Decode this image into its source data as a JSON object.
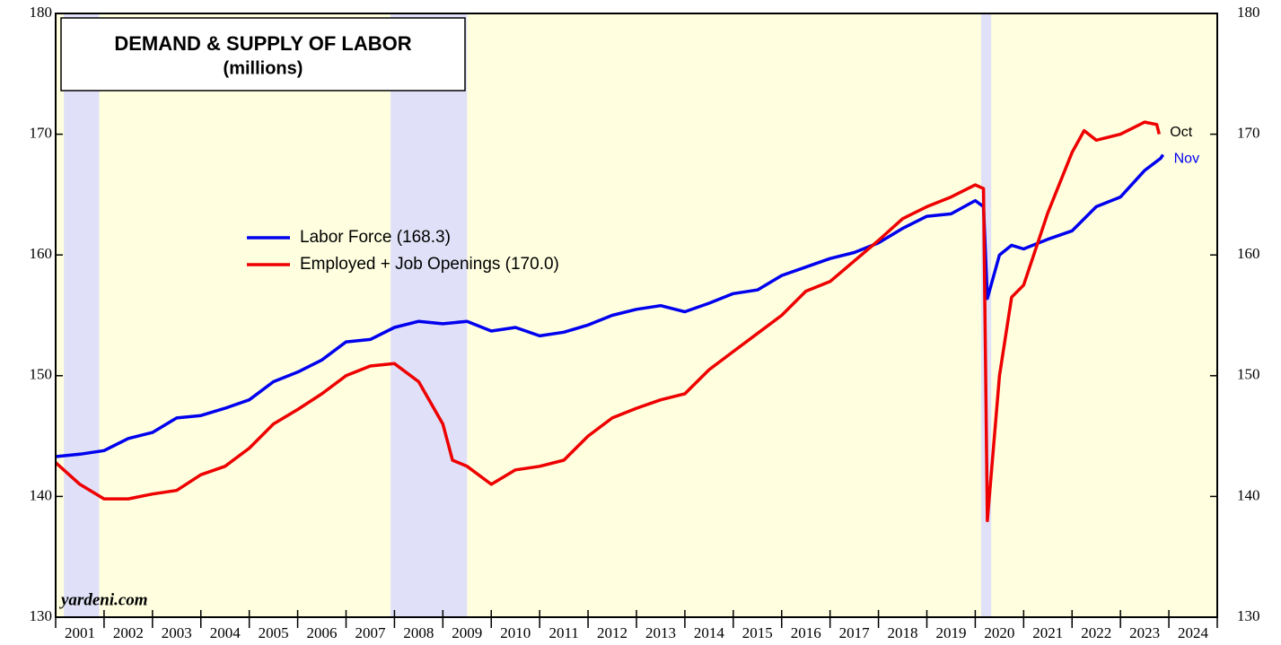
{
  "chart_data": {
    "type": "line",
    "title": "DEMAND & SUPPLY OF LABOR",
    "subtitle": "(millions)",
    "watermark": "yardeni.com",
    "background": "#ffffe0",
    "recession_color": "#e0e0f8",
    "recessions": [
      [
        2001.17,
        2001.9
      ],
      [
        2007.92,
        2009.5
      ],
      [
        2020.12,
        2020.33
      ]
    ],
    "xlim": [
      2001,
      2025
    ],
    "xticks": [
      2001,
      2002,
      2003,
      2004,
      2005,
      2006,
      2007,
      2008,
      2009,
      2010,
      2011,
      2012,
      2013,
      2014,
      2015,
      2016,
      2017,
      2018,
      2019,
      2020,
      2021,
      2022,
      2023,
      2024,
      2025
    ],
    "year_labels": [
      "2001",
      "2002",
      "2003",
      "2004",
      "2005",
      "2006",
      "2007",
      "2008",
      "2009",
      "2010",
      "2011",
      "2012",
      "2013",
      "2014",
      "2015",
      "2016",
      "2017",
      "2018",
      "2019",
      "2020",
      "2021",
      "2022",
      "2023",
      "2024"
    ],
    "ylim": [
      130,
      180
    ],
    "yticks": [
      130,
      140,
      150,
      160,
      170,
      180
    ],
    "series": [
      {
        "name": "Labor Force (168.3)",
        "color": "#0000ee",
        "end_label": "Nov",
        "x": [
          2001.0,
          2001.5,
          2002.0,
          2002.5,
          2003.0,
          2003.5,
          2004.0,
          2004.5,
          2005.0,
          2005.5,
          2006.0,
          2006.5,
          2007.0,
          2007.5,
          2008.0,
          2008.5,
          2009.0,
          2009.5,
          2010.0,
          2010.5,
          2011.0,
          2011.5,
          2012.0,
          2012.5,
          2013.0,
          2013.5,
          2014.0,
          2014.5,
          2015.0,
          2015.5,
          2016.0,
          2016.5,
          2017.0,
          2017.5,
          2018.0,
          2018.5,
          2019.0,
          2019.5,
          2020.0,
          2020.17,
          2020.25,
          2020.5,
          2020.75,
          2021.0,
          2021.5,
          2022.0,
          2022.5,
          2023.0,
          2023.5,
          2023.83,
          2023.88
        ],
        "values": [
          143.3,
          143.5,
          143.8,
          144.8,
          145.3,
          146.5,
          146.7,
          147.3,
          148.0,
          149.5,
          150.3,
          151.3,
          152.8,
          153.0,
          154.0,
          154.5,
          154.3,
          154.5,
          153.7,
          154.0,
          153.3,
          153.6,
          154.2,
          155.0,
          155.5,
          155.8,
          155.3,
          156.0,
          156.8,
          157.1,
          158.3,
          159.0,
          159.7,
          160.2,
          161.0,
          162.2,
          163.2,
          163.4,
          164.5,
          164.0,
          156.4,
          160.0,
          160.8,
          160.5,
          161.3,
          162.0,
          164.0,
          164.8,
          167.0,
          168.0,
          168.3
        ]
      },
      {
        "name": "Employed + Job Openings (170.0)",
        "color": "#ee0000",
        "end_label": "Oct",
        "x": [
          2001.0,
          2001.5,
          2002.0,
          2002.5,
          2003.0,
          2003.5,
          2004.0,
          2004.5,
          2005.0,
          2005.5,
          2006.0,
          2006.5,
          2007.0,
          2007.5,
          2008.0,
          2008.5,
          2009.0,
          2009.2,
          2009.5,
          2010.0,
          2010.5,
          2011.0,
          2011.5,
          2012.0,
          2012.5,
          2013.0,
          2013.5,
          2014.0,
          2014.5,
          2015.0,
          2015.5,
          2016.0,
          2016.5,
          2017.0,
          2017.5,
          2018.0,
          2018.5,
          2019.0,
          2019.5,
          2020.0,
          2020.17,
          2020.25,
          2020.5,
          2020.75,
          2021.0,
          2021.5,
          2022.0,
          2022.25,
          2022.5,
          2023.0,
          2023.5,
          2023.75,
          2023.8
        ],
        "values": [
          142.8,
          141.0,
          139.8,
          139.8,
          140.2,
          140.5,
          141.8,
          142.5,
          144.0,
          146.0,
          147.2,
          148.5,
          150.0,
          150.8,
          151.0,
          149.5,
          146.0,
          143.0,
          142.5,
          141.0,
          142.2,
          142.5,
          143.0,
          145.0,
          146.5,
          147.3,
          148.0,
          148.5,
          150.5,
          152.0,
          153.5,
          155.0,
          157.0,
          157.8,
          159.5,
          161.2,
          163.0,
          164.0,
          164.8,
          165.8,
          165.5,
          138.0,
          150.0,
          156.5,
          157.5,
          163.5,
          168.5,
          170.3,
          169.5,
          170.0,
          171.0,
          170.8,
          170.0
        ]
      }
    ]
  }
}
